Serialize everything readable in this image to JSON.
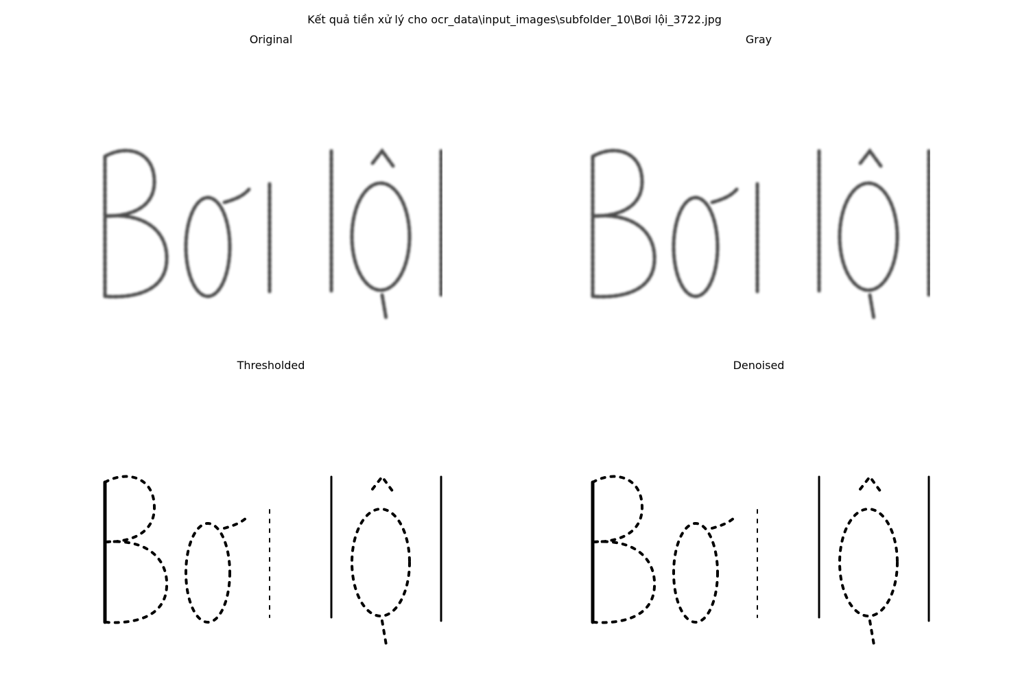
{
  "figure": {
    "suptitle": "Kết quả tiền xử lý cho ocr_data\\input_images\\subfolder_10\\Bơi lội_3722.jpg"
  },
  "panels": [
    {
      "title": "Original",
      "word_image": "Bơi lội",
      "style": "soft"
    },
    {
      "title": "Gray",
      "word_image": "Bơi lội",
      "style": "soft"
    },
    {
      "title": "Thresholded",
      "word_image": "Bơi lội",
      "style": "binary"
    },
    {
      "title": "Denoised",
      "word_image": "Bơi lội",
      "style": "binary"
    }
  ],
  "colors": {
    "background": "#ffffff",
    "ink": "#000000",
    "soft_ink": "#2b2b2b"
  }
}
